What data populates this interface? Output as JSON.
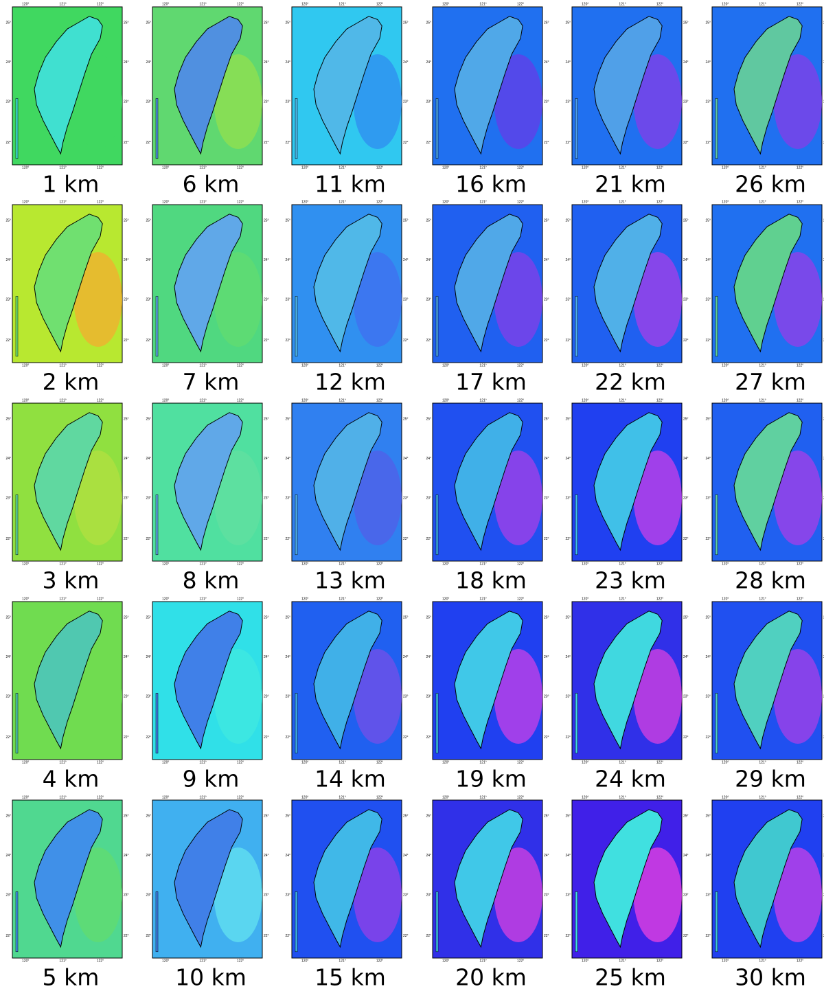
{
  "lon_ticks": [
    "120°",
    "121°",
    "122°"
  ],
  "lat_ticks": [
    "25°",
    "24°",
    "23°",
    "22°"
  ],
  "panels": [
    {
      "label": "1 km",
      "sea": "#40d860",
      "land": "#40e0d0",
      "east": "#40d860"
    },
    {
      "label": "2 km",
      "sea": "#b8e830",
      "land": "#70e070",
      "east": "#f0b030"
    },
    {
      "label": "3 km",
      "sea": "#90e040",
      "land": "#60d8a0",
      "east": "#b0e040"
    },
    {
      "label": "4 km",
      "sea": "#70dc50",
      "land": "#50c8b0",
      "east": "#70dc50"
    },
    {
      "label": "5 km",
      "sea": "#50d890",
      "land": "#4090e8",
      "east": "#60dc70"
    },
    {
      "label": "6 km",
      "sea": "#60d870",
      "land": "#5090e0",
      "east": "#90e050"
    },
    {
      "label": "7 km",
      "sea": "#50d880",
      "land": "#60a8e8",
      "east": "#60dc70"
    },
    {
      "label": "8 km",
      "sea": "#50e0a0",
      "land": "#60a8e8",
      "east": "#60e0a0"
    },
    {
      "label": "9 km",
      "sea": "#30e0e8",
      "land": "#4080e8",
      "east": "#40e8e0"
    },
    {
      "label": "10 km",
      "sea": "#40b0f0",
      "land": "#4080e8",
      "east": "#60e0f0"
    },
    {
      "label": "11 km",
      "sea": "#30c8f0",
      "land": "#50b8e8",
      "east": "#3090f0"
    },
    {
      "label": "12 km",
      "sea": "#3090f0",
      "land": "#50b8e8",
      "east": "#4070f0"
    },
    {
      "label": "13 km",
      "sea": "#3080f0",
      "land": "#50b0e8",
      "east": "#5060e8"
    },
    {
      "label": "14 km",
      "sea": "#2060f0",
      "land": "#40b0e8",
      "east": "#7050e8"
    },
    {
      "label": "15 km",
      "sea": "#2050f0",
      "land": "#40b8e8",
      "east": "#9040e8"
    },
    {
      "label": "16 km",
      "sea": "#2070f0",
      "land": "#50a8e8",
      "east": "#6040e8"
    },
    {
      "label": "17 km",
      "sea": "#2060f0",
      "land": "#50a8e8",
      "east": "#8040e8"
    },
    {
      "label": "18 km",
      "sea": "#2050f0",
      "land": "#40b0e8",
      "east": "#a040e8"
    },
    {
      "label": "19 km",
      "sea": "#2040f0",
      "land": "#40c8e8",
      "east": "#c040e8"
    },
    {
      "label": "20 km",
      "sea": "#3030e8",
      "land": "#40c8e8",
      "east": "#d040e0"
    },
    {
      "label": "21 km",
      "sea": "#2070f0",
      "land": "#50a0e8",
      "east": "#8040e8"
    },
    {
      "label": "22 km",
      "sea": "#2060f0",
      "land": "#50b0e8",
      "east": "#a040e8"
    },
    {
      "label": "23 km",
      "sea": "#2040f0",
      "land": "#40c0e8",
      "east": "#c040e8"
    },
    {
      "label": "24 km",
      "sea": "#3030e8",
      "land": "#40d8e0",
      "east": "#d040e0"
    },
    {
      "label": "25 km",
      "sea": "#4020e8",
      "land": "#40e0e0",
      "east": "#e040e0"
    },
    {
      "label": "26 km",
      "sea": "#2070f0",
      "land": "#60c8a0",
      "east": "#8040e8"
    },
    {
      "label": "27 km",
      "sea": "#2070f0",
      "land": "#60d090",
      "east": "#9040e8"
    },
    {
      "label": "28 km",
      "sea": "#2060f0",
      "land": "#60d0a0",
      "east": "#a040e8"
    },
    {
      "label": "29 km",
      "sea": "#2050f0",
      "land": "#50d0c0",
      "east": "#a040e8"
    },
    {
      "label": "30 km",
      "sea": "#2040f0",
      "land": "#40c8d0",
      "east": "#c040e8"
    }
  ]
}
